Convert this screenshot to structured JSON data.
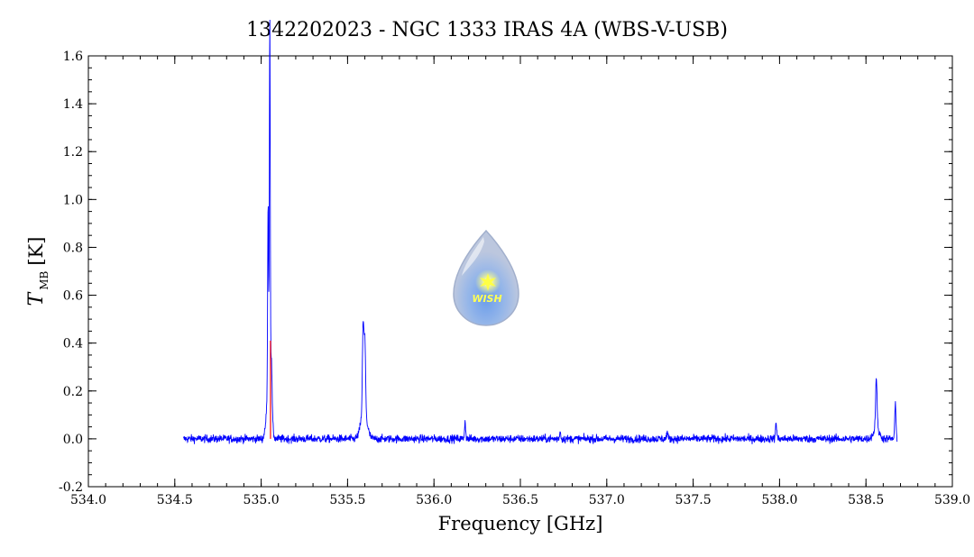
{
  "chart_data": {
    "type": "line",
    "title": "1342202023 - NGC 1333 IRAS 4A (WBS-V-USB)",
    "xlabel": "Frequency [GHz]",
    "ylabel": {
      "main": "T",
      "sub": "MB",
      "unit": "[K]"
    },
    "xlim": [
      534.0,
      539.0
    ],
    "ylim": [
      -0.2,
      1.6
    ],
    "x_ticks": [
      "534.0",
      "534.5",
      "535.0",
      "535.5",
      "536.0",
      "536.5",
      "537.0",
      "537.5",
      "538.0",
      "538.5",
      "539.0"
    ],
    "y_ticks": [
      "-0.2",
      "0.0",
      "0.2",
      "0.4",
      "0.6",
      "0.8",
      "1.0",
      "1.2",
      "1.4",
      "1.6"
    ],
    "grid": false,
    "x_range": [
      534.55,
      538.68
    ],
    "series": [
      {
        "color": "#0000ff",
        "noise_rms": 0.012,
        "peaks": [
          {
            "x": 535.02,
            "y": 0.02
          },
          {
            "x": 535.04,
            "y": 0.72
          },
          {
            "x": 535.05,
            "y": 1.43
          },
          {
            "x": 535.06,
            "y": 0.15
          },
          {
            "x": 535.59,
            "y": 0.36
          },
          {
            "x": 535.6,
            "y": 0.3
          },
          {
            "x": 536.18,
            "y": 0.07
          },
          {
            "x": 536.73,
            "y": 0.03
          },
          {
            "x": 537.35,
            "y": 0.03
          },
          {
            "x": 537.98,
            "y": 0.07
          },
          {
            "x": 538.56,
            "y": 0.22
          },
          {
            "x": 538.67,
            "y": 0.14
          }
        ]
      },
      {
        "color": "#ff0000",
        "peaks": [
          {
            "x": 535.054,
            "y": 0.41
          }
        ]
      }
    ]
  },
  "logo": {
    "text": "WISH",
    "outer_color": "#aab8d8",
    "inner_color": "#6f9be0",
    "star_color": "#ffff33"
  }
}
